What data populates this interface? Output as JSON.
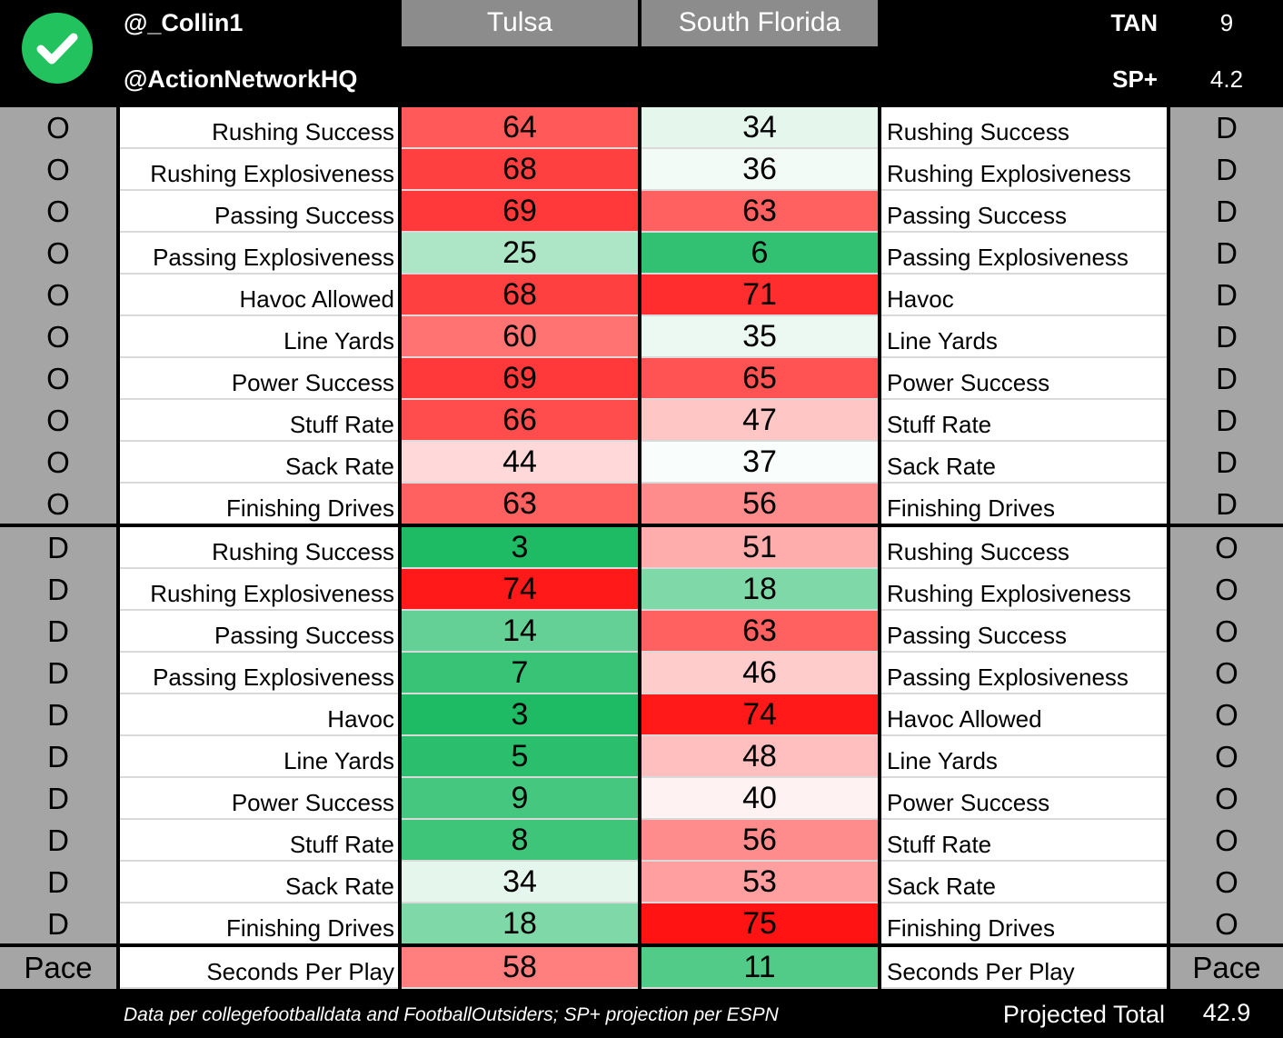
{
  "header": {
    "handle_1": "@_Collin1",
    "handle_2": "@ActionNetworkHQ",
    "team_left": "Tulsa",
    "team_right": "South Florida",
    "stat_1_label": "TAN",
    "stat_1_value": "9",
    "stat_2_label": "SP+",
    "stat_2_value": "4.2"
  },
  "scale": {
    "low_color": "#0bb557",
    "mid_color": "#ffffff",
    "high_color": "#ff1313",
    "min": 0,
    "max": 75,
    "mid": 38
  },
  "sections": [
    {
      "left_side": "O",
      "right_side": "D",
      "rows": [
        {
          "left_label": "Rushing Success",
          "tulsa": 64,
          "usf": 34,
          "right_label": "Rushing Success"
        },
        {
          "left_label": "Rushing Explosiveness",
          "tulsa": 68,
          "usf": 36,
          "right_label": "Rushing Explosiveness"
        },
        {
          "left_label": "Passing Success",
          "tulsa": 69,
          "usf": 63,
          "right_label": "Passing Success"
        },
        {
          "left_label": "Passing Explosiveness",
          "tulsa": 25,
          "usf": 6,
          "right_label": "Passing Explosiveness"
        },
        {
          "left_label": "Havoc Allowed",
          "tulsa": 68,
          "usf": 71,
          "right_label": "Havoc"
        },
        {
          "left_label": "Line Yards",
          "tulsa": 60,
          "usf": 35,
          "right_label": "Line Yards"
        },
        {
          "left_label": "Power Success",
          "tulsa": 69,
          "usf": 65,
          "right_label": "Power Success"
        },
        {
          "left_label": "Stuff Rate",
          "tulsa": 66,
          "usf": 47,
          "right_label": "Stuff Rate"
        },
        {
          "left_label": "Sack Rate",
          "tulsa": 44,
          "usf": 37,
          "right_label": "Sack Rate"
        },
        {
          "left_label": "Finishing Drives",
          "tulsa": 63,
          "usf": 56,
          "right_label": "Finishing Drives"
        }
      ]
    },
    {
      "left_side": "D",
      "right_side": "O",
      "rows": [
        {
          "left_label": "Rushing Success",
          "tulsa": 3,
          "usf": 51,
          "right_label": "Rushing Success"
        },
        {
          "left_label": "Rushing Explosiveness",
          "tulsa": 74,
          "usf": 18,
          "right_label": "Rushing Explosiveness"
        },
        {
          "left_label": "Passing Success",
          "tulsa": 14,
          "usf": 63,
          "right_label": "Passing Success"
        },
        {
          "left_label": "Passing Explosiveness",
          "tulsa": 7,
          "usf": 46,
          "right_label": "Passing Explosiveness"
        },
        {
          "left_label": "Havoc",
          "tulsa": 3,
          "usf": 74,
          "right_label": "Havoc Allowed"
        },
        {
          "left_label": "Line Yards",
          "tulsa": 5,
          "usf": 48,
          "right_label": "Line Yards"
        },
        {
          "left_label": "Power Success",
          "tulsa": 9,
          "usf": 40,
          "right_label": "Power Success"
        },
        {
          "left_label": "Stuff Rate",
          "tulsa": 8,
          "usf": 56,
          "right_label": "Stuff Rate"
        },
        {
          "left_label": "Sack Rate",
          "tulsa": 34,
          "usf": 53,
          "right_label": "Sack Rate"
        },
        {
          "left_label": "Finishing Drives",
          "tulsa": 18,
          "usf": 75,
          "right_label": "Finishing Drives"
        }
      ]
    },
    {
      "left_side": "Pace",
      "right_side": "Pace",
      "rows": [
        {
          "left_label": "Seconds Per Play",
          "tulsa": 58,
          "usf": 11,
          "right_label": "Seconds Per Play"
        }
      ]
    }
  ],
  "footer": {
    "note": "Data per collegefootballdata and FootballOutsiders; SP+ projection per ESPN",
    "total_label": "Projected Total",
    "total_value": "42.9"
  }
}
